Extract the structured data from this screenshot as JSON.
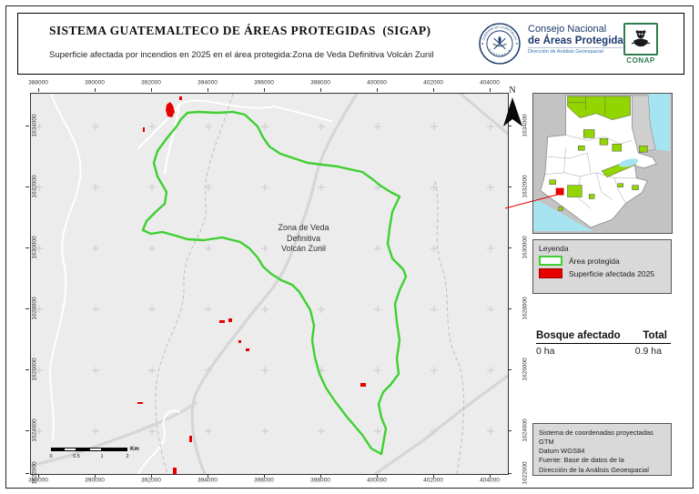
{
  "header": {
    "title": "SISTEMA GUATEMALTECO DE ÁREAS PROTEGIDAS  (SIGAP)",
    "subtitle": "Superficie afectada por incendios en 2025 en el área protegida:Zona de Veda Definitiva Volcán Zunil",
    "seal": {
      "top": "GOBIERNO DE LA REPÚBLICA",
      "bottom": "GUATEMALA"
    },
    "org": {
      "line1": "Consejo Nacional",
      "line2": "de Áreas Protegidas",
      "line3": "Dirección de Análisis Geoespacial"
    },
    "conap_label": "CONAP"
  },
  "map": {
    "area_label_lines": [
      "Zona de Veda",
      "Definitiva",
      "Volcán Zunil"
    ],
    "x_ticks": [
      "388000",
      "390000",
      "392000",
      "394000",
      "396000",
      "398000",
      "400000",
      "402000",
      "404000"
    ],
    "y_ticks": [
      "1634000",
      "1632000",
      "1630000",
      "1628000",
      "1626000",
      "1624000",
      "1622000"
    ],
    "north_label": "N",
    "scalebar": {
      "labels": [
        "0",
        "0.5",
        "1",
        "2"
      ],
      "unit": "Km"
    }
  },
  "legend": {
    "title": "Leyenda",
    "items": [
      {
        "label": "Área protegida",
        "type": "outline",
        "color": "#3ed032"
      },
      {
        "label": "Superficie afectada 2025",
        "type": "fill",
        "color": "#e60000"
      }
    ]
  },
  "stats": {
    "header_left": "Bosque afectado",
    "header_right": "Total",
    "value_left": "0 ha",
    "value_right": "0.9 ha"
  },
  "credits_lines": [
    "Sistema de coordenadas proyectadas",
    "GTM",
    "Datum WGS84",
    "Fuente: Base de datos de la",
    "Dirección de la Análisis Geoespacial"
  ],
  "colors": {
    "protected_green": "#3ed032",
    "inset_green": "#93d500",
    "affected_red": "#e60000",
    "water": "#a7e4f2",
    "navy": "#1b3a6b",
    "conap_green": "#2e7d4f",
    "map_background": "#ececec",
    "panel_background": "#d9d9d9"
  }
}
